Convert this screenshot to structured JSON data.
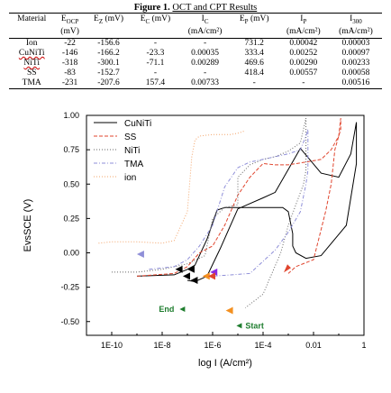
{
  "caption": {
    "prefix": "Figure 1.",
    "title": "OCT and CPT Results"
  },
  "table": {
    "headers": [
      {
        "main": "Material",
        "sub": "",
        "unit": ""
      },
      {
        "main": "E",
        "sub": "OCP",
        "unit": "(mV)"
      },
      {
        "main": "E",
        "sub": "Z",
        "unit": " (mV)"
      },
      {
        "main": "E",
        "sub": "C",
        "unit": " (mV)"
      },
      {
        "main": "I",
        "sub": "C",
        "unit": "(mA/cm²)"
      },
      {
        "main": "E",
        "sub": "P",
        "unit": " (mV)"
      },
      {
        "main": "I",
        "sub": "P",
        "unit": "(mA/cm²)"
      },
      {
        "main": "I",
        "sub": "300",
        "unit": "(mA/cm²)"
      }
    ],
    "rows": [
      [
        "Ion",
        "-22",
        "-156.6",
        "-",
        "-",
        "731.2",
        "0.00042",
        "0.00003"
      ],
      [
        "CuNiTi",
        "-146",
        "-166.2",
        "-23.3",
        "0.00035",
        "333.4",
        "0.00252",
        "0.00097"
      ],
      [
        "NiTi",
        "-318",
        "-300.1",
        "-71.1",
        "0.00289",
        "469.6",
        "0.00290",
        "0.00233"
      ],
      [
        "SS",
        "-83",
        "-152.7",
        "-",
        "-",
        "418.4",
        "0.00557",
        "0.00058"
      ],
      [
        "TMA",
        "-231",
        "-207.6",
        "157.4",
        "0.00733",
        "-",
        "-",
        "0.00516"
      ]
    ]
  },
  "chart_data": {
    "type": "line",
    "xlabel": "log I (A/cm²)",
    "ylabel": "EvsSCE (V)",
    "x_scale": "log",
    "xlim": [
      1e-11,
      1
    ],
    "ylim": [
      -0.6,
      1.0
    ],
    "x_ticks": [
      "1E-10",
      "1E-8",
      "1E-6",
      "1E-4",
      "0.01",
      "1"
    ],
    "y_ticks": [
      "-0.50",
      "-0.25",
      "0.00",
      "0.25",
      "0.50",
      "0.75",
      "1.00"
    ],
    "legend_position": "top-left",
    "series": [
      {
        "name": "CuNiTi",
        "color": "#000000",
        "style": "solid",
        "x": [
          1e-09,
          3e-08,
          1e-07,
          2e-07,
          6e-07,
          1.5e-06,
          3e-06,
          1e-05,
          3e-05,
          0.0001,
          0.0006,
          0.001,
          0.0015,
          0.0015,
          0.002,
          0.005,
          0.02,
          0.2,
          0.5,
          0.5,
          0.3,
          0.1,
          0.02,
          0.003,
          0.0003,
          0.0001,
          1e-05,
          2e-06,
          6e-07,
          2e-07,
          1e-07
        ],
        "y": [
          -0.17,
          -0.16,
          -0.12,
          -0.09,
          0.1,
          0.31,
          0.33,
          0.33,
          0.33,
          0.33,
          0.33,
          0.3,
          0.14,
          0.05,
          0.0,
          -0.04,
          -0.02,
          0.2,
          0.65,
          0.95,
          0.72,
          0.55,
          0.58,
          0.76,
          0.44,
          0.4,
          0.32,
          0.03,
          -0.17,
          -0.21,
          -0.2
        ]
      },
      {
        "name": "SS",
        "color": "#e0452e",
        "style": "dashed",
        "x": [
          1e-09,
          3e-08,
          1e-07,
          3e-07,
          1e-06,
          3e-06,
          1e-05,
          3e-05,
          0.0001,
          0.0003,
          0.001,
          0.005,
          0.02,
          0.05,
          0.1,
          0.12,
          0.12,
          0.1,
          0.07,
          0.05,
          0.03,
          0.01,
          0.002,
          0.001
        ],
        "y": [
          -0.17,
          -0.15,
          -0.1,
          0.0,
          0.05,
          0.2,
          0.42,
          0.55,
          0.65,
          0.64,
          0.64,
          0.66,
          0.68,
          0.75,
          0.85,
          0.98,
          0.9,
          0.85,
          0.75,
          0.5,
          0.3,
          -0.05,
          -0.1,
          -0.15
        ]
      },
      {
        "name": "NiTi",
        "color": "#666666",
        "style": "dotted",
        "x": [
          1e-10,
          1e-09,
          1e-08,
          1e-07,
          5e-07,
          1e-06,
          3e-06,
          1e-05,
          1e-05,
          3e-05,
          0.0001,
          0.0003,
          0.001,
          0.003,
          0.005,
          0.005,
          0.004,
          0.002,
          0.001,
          0.0005,
          0.0001,
          2e-05
        ],
        "y": [
          -0.14,
          -0.14,
          -0.12,
          -0.08,
          -0.02,
          0.25,
          0.33,
          0.35,
          0.55,
          0.64,
          0.68,
          0.7,
          0.74,
          0.8,
          0.98,
          0.6,
          0.5,
          0.35,
          0.2,
          0.0,
          -0.3,
          -0.4
        ]
      },
      {
        "name": "TMA",
        "color": "#8f8fd8",
        "style": "dashdot",
        "x": [
          3e-09,
          3e-08,
          1e-07,
          3e-07,
          1e-06,
          3e-06,
          1e-05,
          3e-05,
          0.0001,
          0.0003,
          0.001,
          0.003,
          0.005,
          0.006,
          0.006,
          0.005,
          0.003,
          0.001,
          0.0003,
          3e-05,
          1e-06
        ],
        "y": [
          -0.12,
          -0.1,
          -0.05,
          0.05,
          0.2,
          0.48,
          0.62,
          0.66,
          0.68,
          0.7,
          0.72,
          0.75,
          0.85,
          0.9,
          0.6,
          0.5,
          0.3,
          0.15,
          0.02,
          -0.15,
          -0.17
        ]
      },
      {
        "name": "ion",
        "color": "#f3a46a",
        "style": "dotted",
        "x": [
          3e-11,
          1e-10,
          1e-09,
          1e-08,
          3e-08,
          1e-07,
          1.5e-07,
          2e-07,
          3e-07,
          1e-06,
          5e-06,
          1e-05,
          1.5e-05,
          2e-05
        ],
        "y": [
          0.07,
          0.08,
          0.08,
          0.07,
          0.09,
          0.3,
          0.7,
          0.82,
          0.85,
          0.86,
          0.86,
          0.87,
          0.88,
          0.89
        ]
      }
    ],
    "annotations": [
      {
        "text": "End",
        "x": 3e-08,
        "y": -0.41,
        "color": "#1e7d2e"
      },
      {
        "text": "Start",
        "x": 2e-05,
        "y": -0.53,
        "color": "#1e7d2e"
      }
    ]
  }
}
